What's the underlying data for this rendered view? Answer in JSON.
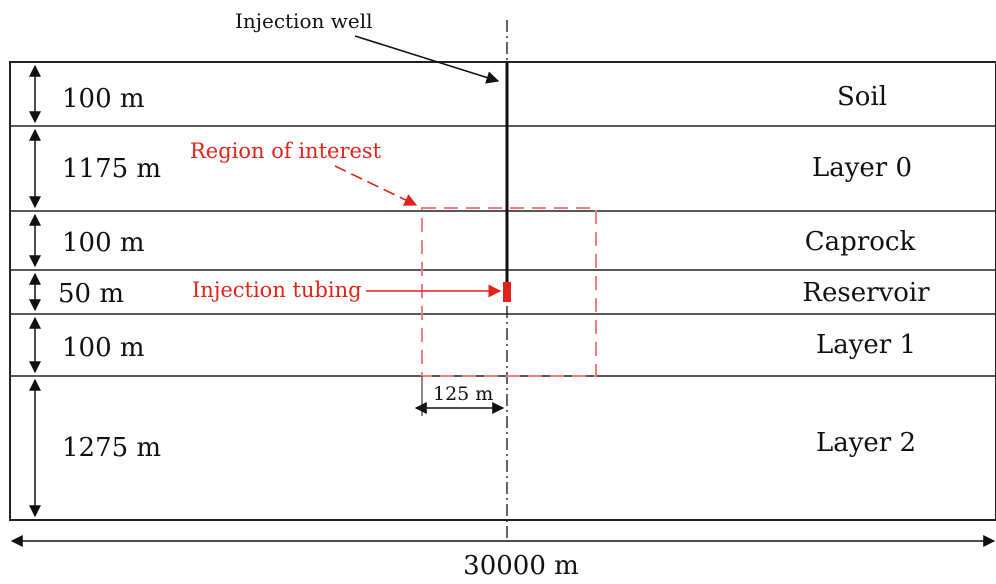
{
  "annotations": {
    "well": "Injection well",
    "roi": "Region of interest",
    "tubing": "Injection tubing",
    "offset": "125 m",
    "width": "30000 m"
  },
  "layers": [
    {
      "name": "Soil",
      "thickness": "100 m"
    },
    {
      "name": "Layer 0",
      "thickness": "1175 m"
    },
    {
      "name": "Caprock",
      "thickness": "100 m"
    },
    {
      "name": "Reservoir",
      "thickness": "50 m"
    },
    {
      "name": "Layer 1",
      "thickness": "100 m"
    },
    {
      "name": "Layer 2",
      "thickness": "1275 m"
    }
  ],
  "colors": {
    "line": "#222222",
    "accent": "#e2231a",
    "roi": "#f08080"
  }
}
